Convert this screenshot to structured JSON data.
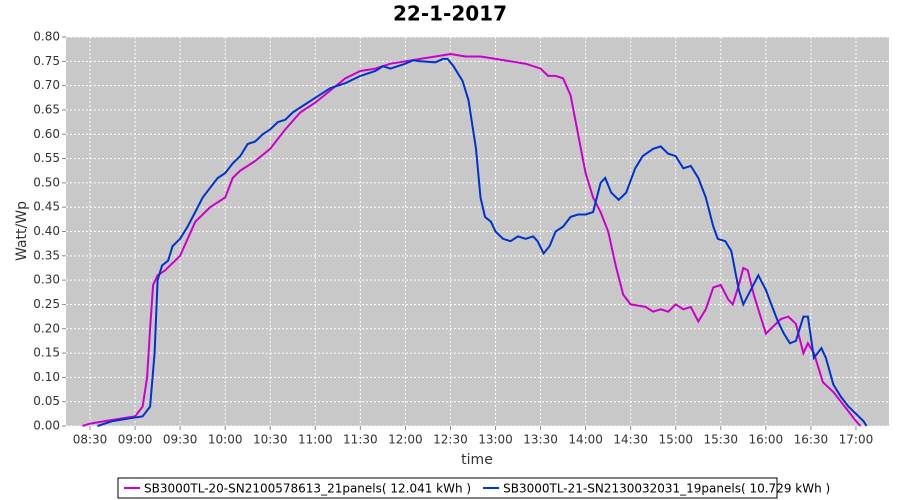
{
  "chart_data": {
    "type": "line",
    "title": "22-1-2017",
    "x_label": "time",
    "y_label": "Watt/Wp",
    "xlim": [
      "08:14",
      "17:22"
    ],
    "xticks": [
      "08:30",
      "09:00",
      "09:30",
      "10:00",
      "10:30",
      "11:00",
      "11:30",
      "12:00",
      "12:30",
      "13:00",
      "13:30",
      "14:00",
      "14:30",
      "15:00",
      "15:30",
      "16:00",
      "16:30",
      "17:00"
    ],
    "ylim": [
      0,
      0.8
    ],
    "yticks": [
      {
        "value": 0,
        "label": "0.00"
      },
      0.05,
      {
        "value": 0.1,
        "label": "0.10"
      },
      0.15,
      {
        "value": 0.2,
        "label": "0.20"
      },
      0.25,
      {
        "value": 0.3,
        "label": "0.30"
      },
      0.35,
      {
        "value": 0.4,
        "label": "0.40"
      },
      0.45,
      {
        "value": 0.5,
        "label": "0.50"
      },
      0.55,
      {
        "value": 0.6,
        "label": "0.60"
      },
      0.65,
      {
        "value": 0.7,
        "label": "0.70"
      },
      0.75,
      {
        "value": 0.8,
        "label": "0.80"
      }
    ],
    "grid": true,
    "series": [
      {
        "name": "SB3000TL-20-SN2100578613_21panels( 12.041 kWh )",
        "color": "#cc00cc",
        "x": [
          "08:25",
          "08:30",
          "08:40",
          "08:50",
          "09:00",
          "09:05",
          "09:08",
          "09:10",
          "09:12",
          "09:15",
          "09:20",
          "09:30",
          "09:40",
          "09:50",
          "10:00",
          "10:05",
          "10:10",
          "10:20",
          "10:30",
          "10:40",
          "10:50",
          "11:00",
          "11:10",
          "11:20",
          "11:30",
          "11:40",
          "11:50",
          "12:00",
          "12:10",
          "12:20",
          "12:30",
          "12:40",
          "12:50",
          "13:00",
          "13:10",
          "13:20",
          "13:30",
          "13:35",
          "13:40",
          "13:45",
          "13:50",
          "13:55",
          "14:00",
          "14:05",
          "14:10",
          "14:15",
          "14:20",
          "14:25",
          "14:30",
          "14:40",
          "14:45",
          "14:50",
          "14:55",
          "15:00",
          "15:05",
          "15:10",
          "15:15",
          "15:20",
          "15:25",
          "15:30",
          "15:35",
          "15:38",
          "15:42",
          "15:45",
          "15:48",
          "15:52",
          "15:55",
          "16:00",
          "16:05",
          "16:10",
          "16:15",
          "16:20",
          "16:25",
          "16:28",
          "16:32",
          "16:38",
          "16:45",
          "16:50",
          "16:55",
          "17:00",
          "17:03"
        ],
        "values": [
          0,
          0.005,
          0.01,
          0.015,
          0.02,
          0.04,
          0.1,
          0.2,
          0.29,
          0.31,
          0.32,
          0.35,
          0.42,
          0.45,
          0.47,
          0.51,
          0.525,
          0.545,
          0.57,
          0.61,
          0.645,
          0.665,
          0.69,
          0.715,
          0.73,
          0.735,
          0.745,
          0.75,
          0.755,
          0.76,
          0.765,
          0.76,
          0.76,
          0.755,
          0.75,
          0.745,
          0.735,
          0.72,
          0.72,
          0.715,
          0.68,
          0.6,
          0.52,
          0.47,
          0.44,
          0.4,
          0.33,
          0.27,
          0.25,
          0.245,
          0.235,
          0.24,
          0.235,
          0.25,
          0.24,
          0.245,
          0.215,
          0.24,
          0.285,
          0.29,
          0.26,
          0.25,
          0.29,
          0.325,
          0.32,
          0.27,
          0.24,
          0.19,
          0.205,
          0.22,
          0.225,
          0.21,
          0.15,
          0.17,
          0.15,
          0.09,
          0.07,
          0.05,
          0.03,
          0.01,
          0
        ]
      },
      {
        "name": "SB3000TL-21-SN2130032031_19panels( 10.729 kWh )",
        "color": "#0033cc",
        "x": [
          "08:35",
          "08:45",
          "08:55",
          "09:05",
          "09:10",
          "09:13",
          "09:15",
          "09:18",
          "09:22",
          "09:25",
          "09:30",
          "09:35",
          "09:40",
          "09:45",
          "09:50",
          "09:55",
          "10:00",
          "10:05",
          "10:10",
          "10:15",
          "10:20",
          "10:25",
          "10:30",
          "10:35",
          "10:40",
          "10:45",
          "10:50",
          "11:00",
          "11:10",
          "11:20",
          "11:30",
          "11:40",
          "11:45",
          "11:50",
          "12:00",
          "12:05",
          "12:10",
          "12:20",
          "12:25",
          "12:28",
          "12:32",
          "12:38",
          "12:42",
          "12:47",
          "12:50",
          "12:53",
          "12:57",
          "13:00",
          "13:05",
          "13:10",
          "13:15",
          "13:20",
          "13:25",
          "13:28",
          "13:32",
          "13:36",
          "13:40",
          "13:45",
          "13:50",
          "13:55",
          "14:00",
          "14:05",
          "14:10",
          "14:13",
          "14:17",
          "14:22",
          "14:27",
          "14:33",
          "14:38",
          "14:45",
          "14:50",
          "14:55",
          "15:00",
          "15:05",
          "15:10",
          "15:15",
          "15:20",
          "15:25",
          "15:28",
          "15:33",
          "15:37",
          "15:42",
          "15:45",
          "15:50",
          "15:55",
          "16:00",
          "16:03",
          "16:08",
          "16:12",
          "16:16",
          "16:20",
          "16:25",
          "16:28",
          "16:32",
          "16:37",
          "16:40",
          "16:45",
          "16:50",
          "16:55",
          "17:00",
          "17:05",
          "17:07"
        ],
        "values": [
          0,
          0.01,
          0.015,
          0.02,
          0.04,
          0.15,
          0.3,
          0.33,
          0.34,
          0.37,
          0.385,
          0.41,
          0.44,
          0.47,
          0.49,
          0.51,
          0.52,
          0.54,
          0.555,
          0.58,
          0.585,
          0.6,
          0.61,
          0.625,
          0.63,
          0.645,
          0.655,
          0.675,
          0.695,
          0.705,
          0.72,
          0.73,
          0.74,
          0.735,
          0.745,
          0.752,
          0.75,
          0.748,
          0.755,
          0.755,
          0.74,
          0.71,
          0.67,
          0.57,
          0.47,
          0.43,
          0.42,
          0.4,
          0.385,
          0.38,
          0.39,
          0.385,
          0.39,
          0.38,
          0.355,
          0.37,
          0.4,
          0.41,
          0.43,
          0.435,
          0.435,
          0.44,
          0.5,
          0.51,
          0.48,
          0.465,
          0.48,
          0.53,
          0.555,
          0.57,
          0.575,
          0.56,
          0.555,
          0.53,
          0.535,
          0.51,
          0.47,
          0.41,
          0.385,
          0.38,
          0.36,
          0.28,
          0.25,
          0.28,
          0.31,
          0.28,
          0.255,
          0.215,
          0.19,
          0.17,
          0.175,
          0.225,
          0.225,
          0.14,
          0.16,
          0.14,
          0.085,
          0.06,
          0.04,
          0.025,
          0.01,
          0
        ]
      }
    ]
  }
}
